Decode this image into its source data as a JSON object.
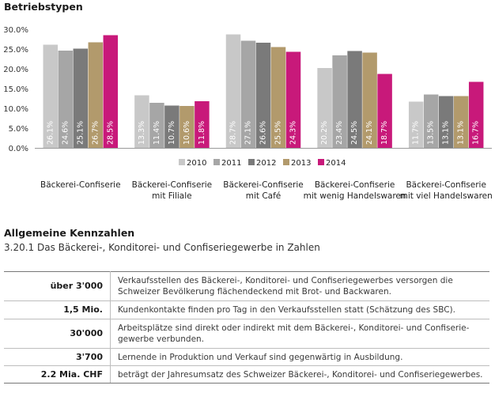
{
  "chart_data": {
    "type": "bar",
    "title": "Betriebstypen",
    "categories": [
      "Bäckerei-Confiserie",
      "Bäckerei-Confiserie mit Filiale",
      "Bäckerei-Confiserie mit Café",
      "Bäckerei-Confiserie mit wenig Handelswaren",
      "Bäckerei-Confiserie mit viel Handelswaren"
    ],
    "category_lines": [
      [
        "Bäckerei-Confiserie"
      ],
      [
        "Bäckerei-Confiserie",
        "mit Filiale"
      ],
      [
        "Bäckerei-Confiserie",
        "mit Café"
      ],
      [
        "Bäckerei-Confiserie",
        "mit wenig Handelswaren"
      ],
      [
        "Bäckerei-Confiserie",
        "mit viel Handelswaren"
      ]
    ],
    "series": [
      {
        "name": "2010",
        "color": "#c8c8c8",
        "values": [
          26.1,
          13.3,
          28.7,
          20.2,
          11.7
        ],
        "labels": [
          "26.1%",
          "13.3%",
          "28.7%",
          "20.2%",
          "11.7%"
        ]
      },
      {
        "name": "2011",
        "color": "#a6a6a6",
        "values": [
          24.6,
          11.4,
          27.1,
          23.4,
          13.5
        ],
        "labels": [
          "24.6%",
          "11.4%",
          "27.1%",
          "23.4%",
          "13.5%"
        ]
      },
      {
        "name": "2012",
        "color": "#7a7a7a",
        "values": [
          25.1,
          10.7,
          26.6,
          24.5,
          13.1
        ],
        "labels": [
          "25.1%",
          "10.7%",
          "26.6%",
          "24.5%",
          "13.1%"
        ]
      },
      {
        "name": "2013",
        "color": "#b29a6c",
        "values": [
          26.7,
          10.6,
          25.5,
          24.1,
          13.1
        ],
        "labels": [
          "26.7%",
          "10.6%",
          "25.5%",
          "24.1%",
          "13.1%"
        ]
      },
      {
        "name": "2014",
        "color": "#c8197a",
        "values": [
          28.5,
          11.8,
          24.3,
          18.7,
          16.7
        ],
        "labels": [
          "28.5%",
          "11.8%",
          "24.3%",
          "18.7%",
          "16.7%"
        ]
      }
    ],
    "yticks": [
      "0.0%",
      "5.0%",
      "10.0%",
      "15.0%",
      "20.0%",
      "25.0%",
      "30.0%"
    ],
    "ylim": [
      0,
      30
    ],
    "legend_position": "bottom-center",
    "grid": false
  },
  "section": {
    "heading": "Allgemeine Kennzahlen",
    "subtitle": "3.20.1 Das Bäckerei-, Konditorei- und Confiseriegewerbe in Zahlen"
  },
  "table": {
    "rows": [
      {
        "key": "über 3'000",
        "lines": [
          "Verkaufsstellen des Bäckerei-, Konditorei- und Confiseriegewerbes versorgen die",
          "Schweizer Bevölkerung flächendeckend mit Brot- und Backwaren."
        ]
      },
      {
        "key": "1,5 Mio.",
        "lines": [
          "Kundenkontakte finden pro Tag in den Verkaufsstellen statt (Schätzung des SBC)."
        ]
      },
      {
        "key": "30'000",
        "lines": [
          "Arbeitsplätze sind direkt oder indirekt mit dem Bäckerei-, Konditorei- und Confiserie-",
          "gewerbe verbunden."
        ]
      },
      {
        "key": "3'700",
        "lines": [
          "Lernende in Produktion und Verkauf sind gegenwärtig in Ausbildung."
        ]
      },
      {
        "key": "2.2 Mia. CHF",
        "lines": [
          "beträgt der Jahresumsatz des Schweizer Bäckerei-, Konditorei- und Confiseriegewerbes."
        ]
      }
    ]
  }
}
